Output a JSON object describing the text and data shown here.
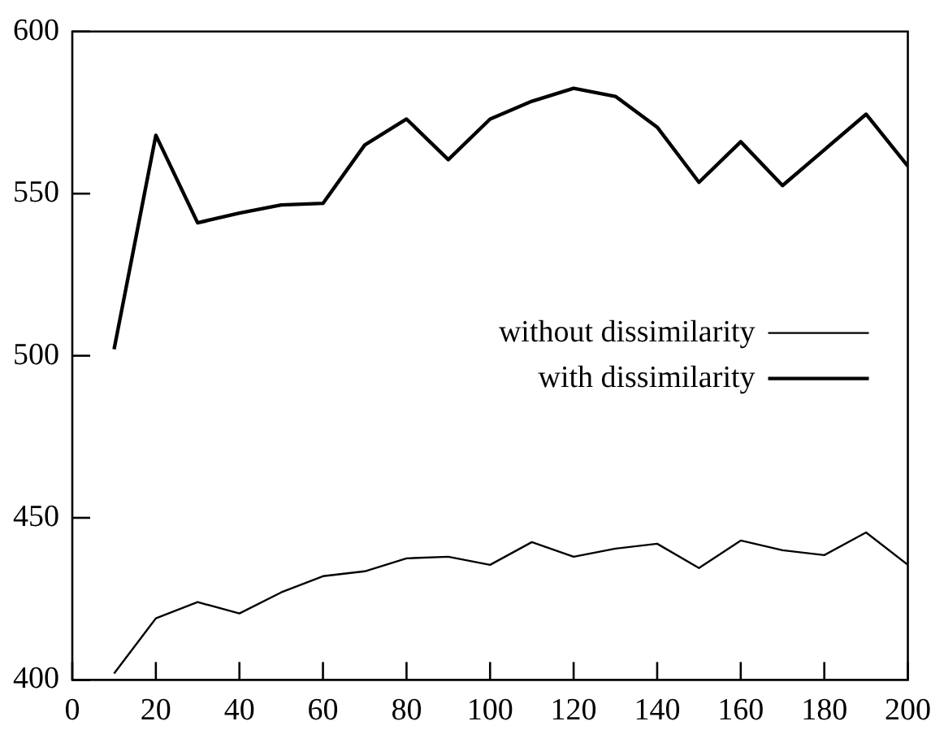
{
  "chart_data": {
    "type": "line",
    "x": [
      10,
      20,
      30,
      40,
      50,
      60,
      70,
      80,
      90,
      100,
      110,
      120,
      130,
      140,
      150,
      160,
      170,
      180,
      190,
      200
    ],
    "series": [
      {
        "name": "without dissimilarity",
        "color": "#000000",
        "values": [
          402,
          419,
          424,
          420.5,
          427,
          432,
          433.5,
          437.5,
          438,
          435.5,
          442.5,
          438,
          440.5,
          442,
          434.5,
          443,
          440,
          438.5,
          445.5,
          435.5
        ]
      },
      {
        "name": "with dissimilarity",
        "color": "#000000",
        "values": [
          502,
          568,
          541,
          544,
          546.5,
          547,
          565,
          573,
          560.5,
          573,
          578.5,
          582.5,
          580,
          570.5,
          553.5,
          566,
          552.5,
          563.5,
          574.5,
          558.5
        ]
      }
    ],
    "xlim": [
      0,
      200
    ],
    "xticks": [
      0,
      20,
      40,
      60,
      80,
      100,
      120,
      140,
      160,
      180,
      200
    ],
    "ylim": [
      400,
      600
    ],
    "yticks": [
      400,
      450,
      500,
      550,
      600
    ],
    "grid": false,
    "legend": "right",
    "marker": "none",
    "line_style": "solid"
  }
}
